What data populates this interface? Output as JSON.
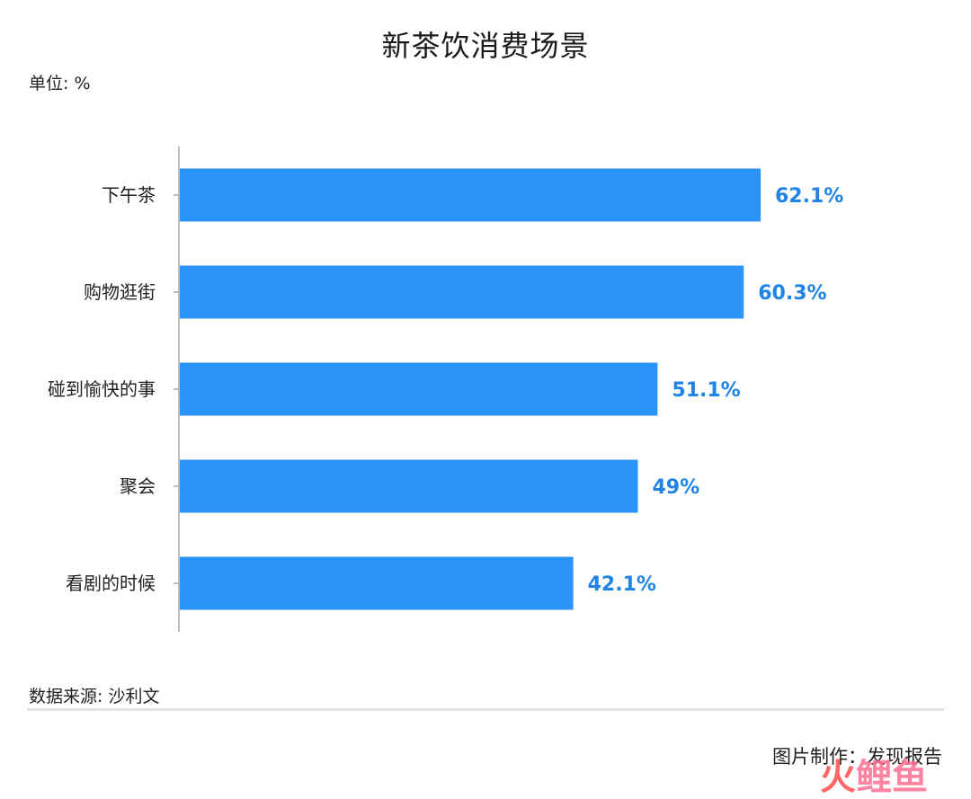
{
  "title": "新茶饮消费场景",
  "unit_label": "单位: %",
  "source_label": "数据来源: 沙利文",
  "credit_label": "图片制作：发现报告",
  "watermark_text": "火鲤鱼",
  "colors": {
    "bar": "#2b94f7",
    "value_label": "#1f84e6",
    "axis": "#bdbdbd",
    "watermark_red": "#ff4c4c",
    "watermark_pink": "#ff6f91"
  },
  "chart_data": {
    "type": "bar",
    "orientation": "horizontal",
    "categories": [
      "下午茶",
      "购物逛街",
      "碰到愉快的事",
      "聚会",
      "看剧的时候"
    ],
    "values": [
      62.1,
      60.3,
      51.1,
      49,
      42.1
    ],
    "value_labels": [
      "62.1%",
      "60.3%",
      "51.1%",
      "49%",
      "42.1%"
    ],
    "xlim": [
      0,
      100
    ],
    "unit": "%",
    "grid": false,
    "legend": "none"
  }
}
